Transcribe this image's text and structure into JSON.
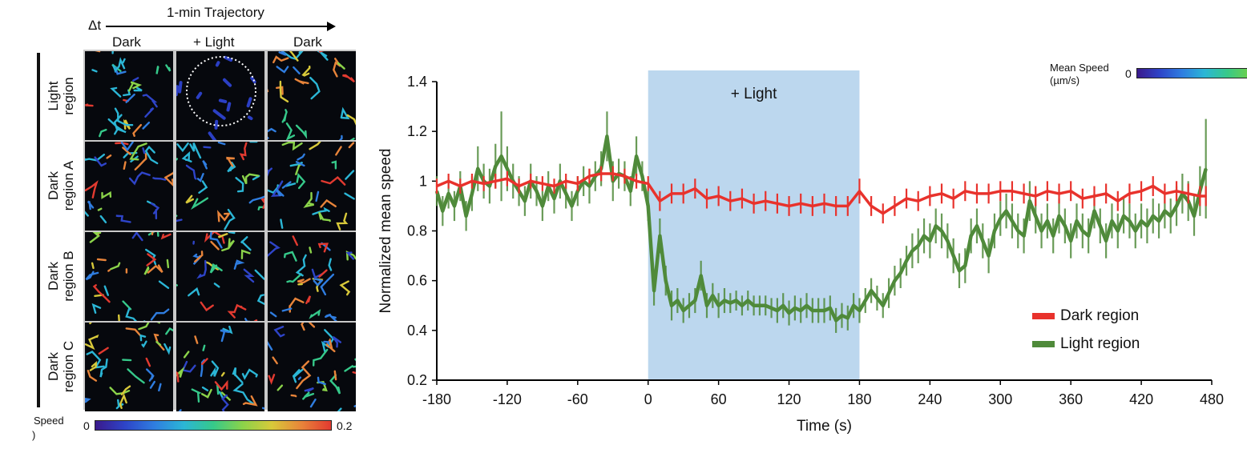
{
  "panel_a": {
    "delta_t": "Δt",
    "header": "1-min Trajectory",
    "columns": [
      "Dark",
      "+ Light",
      "Dark"
    ],
    "rows": [
      [
        "Light",
        "region"
      ],
      [
        "Dark",
        "region A"
      ],
      [
        "Dark",
        "region B"
      ],
      [
        "Dark",
        "region C"
      ]
    ],
    "colorbar": {
      "label": "Speed",
      "label2": ")",
      "min": "0",
      "max": "0.2"
    }
  },
  "legend_top": {
    "label_line1": "Mean Speed",
    "label_line2": "(µm/s)",
    "min": "0"
  },
  "colors": {
    "dark": "#e8322c",
    "light": "#4f8a3a",
    "shade": "#bcd7ee"
  },
  "chart_data": {
    "type": "line",
    "title": "",
    "xlabel": "Time (s)",
    "ylabel": "Normalized mean speed",
    "xlim": [
      -180,
      480
    ],
    "ylim": [
      0.2,
      1.4
    ],
    "xticks": [
      "-180",
      "-120",
      "-60",
      "0",
      "60",
      "120",
      "180",
      "240",
      "300",
      "360",
      "420",
      "480"
    ],
    "yticks": [
      "0.2",
      "0.4",
      "0.6",
      "0.8",
      "1",
      "1.2",
      "1.4"
    ],
    "annotation": {
      "text": "+ Light",
      "x_start": 0,
      "x_end": 180
    },
    "series": [
      {
        "name": "Dark region",
        "color": "#e8322c",
        "x": [
          -180,
          -170,
          -160,
          -150,
          -140,
          -130,
          -120,
          -110,
          -100,
          -90,
          -80,
          -70,
          -60,
          -50,
          -40,
          -30,
          -20,
          -10,
          0,
          10,
          20,
          30,
          40,
          50,
          60,
          70,
          80,
          90,
          100,
          110,
          120,
          130,
          140,
          150,
          160,
          170,
          180,
          190,
          200,
          210,
          220,
          230,
          240,
          250,
          260,
          270,
          280,
          290,
          300,
          310,
          320,
          330,
          340,
          350,
          360,
          370,
          380,
          390,
          400,
          410,
          420,
          430,
          440,
          450,
          460,
          470,
          475
        ],
        "y": [
          0.98,
          1.0,
          0.98,
          1.0,
          0.99,
          1.0,
          1.01,
          0.98,
          1.0,
          0.99,
          0.98,
          1.0,
          0.99,
          1.02,
          1.03,
          1.03,
          1.02,
          1.0,
          0.99,
          0.92,
          0.95,
          0.95,
          0.97,
          0.93,
          0.94,
          0.92,
          0.93,
          0.91,
          0.92,
          0.91,
          0.9,
          0.91,
          0.9,
          0.91,
          0.9,
          0.9,
          0.96,
          0.9,
          0.87,
          0.9,
          0.93,
          0.92,
          0.94,
          0.95,
          0.93,
          0.96,
          0.95,
          0.95,
          0.96,
          0.96,
          0.95,
          0.94,
          0.96,
          0.95,
          0.96,
          0.93,
          0.94,
          0.95,
          0.92,
          0.95,
          0.96,
          0.98,
          0.95,
          0.96,
          0.95,
          0.94,
          0.94
        ],
        "err": [
          0.03,
          0.03,
          0.03,
          0.03,
          0.03,
          0.03,
          0.03,
          0.03,
          0.03,
          0.03,
          0.03,
          0.03,
          0.03,
          0.03,
          0.03,
          0.03,
          0.03,
          0.03,
          0.03,
          0.04,
          0.04,
          0.04,
          0.04,
          0.04,
          0.04,
          0.04,
          0.04,
          0.04,
          0.04,
          0.04,
          0.04,
          0.04,
          0.04,
          0.04,
          0.04,
          0.04,
          0.05,
          0.04,
          0.04,
          0.04,
          0.04,
          0.04,
          0.04,
          0.04,
          0.04,
          0.04,
          0.04,
          0.04,
          0.04,
          0.04,
          0.04,
          0.04,
          0.04,
          0.04,
          0.04,
          0.04,
          0.04,
          0.04,
          0.04,
          0.04,
          0.04,
          0.04,
          0.04,
          0.04,
          0.04,
          0.04,
          0.04
        ]
      },
      {
        "name": "Light region",
        "color": "#4f8a3a",
        "x": [
          -180,
          -175,
          -170,
          -165,
          -160,
          -155,
          -150,
          -145,
          -140,
          -135,
          -130,
          -125,
          -120,
          -115,
          -110,
          -105,
          -100,
          -95,
          -90,
          -85,
          -80,
          -75,
          -70,
          -65,
          -60,
          -55,
          -50,
          -45,
          -40,
          -35,
          -30,
          -25,
          -20,
          -15,
          -10,
          -5,
          0,
          5,
          10,
          15,
          20,
          25,
          30,
          35,
          40,
          45,
          50,
          55,
          60,
          65,
          70,
          75,
          80,
          85,
          90,
          95,
          100,
          105,
          110,
          115,
          120,
          125,
          130,
          135,
          140,
          145,
          150,
          155,
          160,
          165,
          170,
          175,
          180,
          185,
          190,
          195,
          200,
          205,
          210,
          215,
          220,
          225,
          230,
          235,
          240,
          245,
          250,
          255,
          260,
          265,
          270,
          275,
          280,
          285,
          290,
          295,
          300,
          305,
          310,
          315,
          320,
          325,
          330,
          335,
          340,
          345,
          350,
          355,
          360,
          365,
          370,
          375,
          380,
          385,
          390,
          395,
          400,
          405,
          410,
          415,
          420,
          425,
          430,
          435,
          440,
          445,
          450,
          455,
          460,
          465,
          470,
          475
        ],
        "y": [
          0.96,
          0.88,
          0.95,
          0.9,
          0.98,
          0.86,
          0.95,
          1.05,
          1.0,
          0.98,
          1.06,
          1.1,
          1.05,
          1.0,
          0.96,
          0.92,
          1.0,
          0.96,
          0.9,
          0.98,
          0.93,
          1.0,
          0.95,
          0.9,
          0.96,
          1.0,
          0.98,
          1.02,
          1.05,
          1.18,
          1.0,
          1.03,
          1.02,
          0.96,
          1.1,
          1.02,
          0.9,
          0.56,
          0.78,
          0.6,
          0.5,
          0.52,
          0.48,
          0.5,
          0.52,
          0.62,
          0.5,
          0.54,
          0.5,
          0.52,
          0.51,
          0.52,
          0.5,
          0.52,
          0.5,
          0.5,
          0.5,
          0.49,
          0.48,
          0.5,
          0.47,
          0.49,
          0.48,
          0.5,
          0.48,
          0.48,
          0.48,
          0.49,
          0.44,
          0.46,
          0.45,
          0.5,
          0.48,
          0.52,
          0.56,
          0.53,
          0.5,
          0.55,
          0.6,
          0.63,
          0.68,
          0.72,
          0.74,
          0.78,
          0.76,
          0.82,
          0.8,
          0.76,
          0.7,
          0.64,
          0.66,
          0.78,
          0.82,
          0.76,
          0.7,
          0.8,
          0.85,
          0.88,
          0.84,
          0.8,
          0.78,
          0.92,
          0.86,
          0.8,
          0.84,
          0.78,
          0.86,
          0.82,
          0.76,
          0.84,
          0.8,
          0.78,
          0.88,
          0.82,
          0.76,
          0.84,
          0.8,
          0.86,
          0.84,
          0.8,
          0.84,
          0.82,
          0.86,
          0.84,
          0.88,
          0.86,
          0.9,
          0.95,
          0.92,
          0.86,
          0.96,
          1.05
        ],
        "err": [
          0.06,
          0.06,
          0.06,
          0.06,
          0.06,
          0.06,
          0.07,
          0.09,
          0.07,
          0.07,
          0.09,
          0.18,
          0.09,
          0.07,
          0.06,
          0.06,
          0.07,
          0.06,
          0.06,
          0.06,
          0.06,
          0.07,
          0.06,
          0.06,
          0.06,
          0.06,
          0.07,
          0.06,
          0.07,
          0.1,
          0.08,
          0.06,
          0.06,
          0.06,
          0.08,
          0.06,
          0.06,
          0.06,
          0.07,
          0.06,
          0.06,
          0.05,
          0.05,
          0.05,
          0.05,
          0.06,
          0.05,
          0.05,
          0.05,
          0.05,
          0.04,
          0.04,
          0.04,
          0.04,
          0.04,
          0.04,
          0.04,
          0.04,
          0.05,
          0.05,
          0.05,
          0.05,
          0.05,
          0.05,
          0.05,
          0.05,
          0.05,
          0.05,
          0.05,
          0.05,
          0.05,
          0.05,
          0.05,
          0.05,
          0.05,
          0.05,
          0.05,
          0.06,
          0.06,
          0.06,
          0.06,
          0.07,
          0.07,
          0.07,
          0.07,
          0.07,
          0.07,
          0.07,
          0.07,
          0.07,
          0.07,
          0.07,
          0.07,
          0.07,
          0.07,
          0.07,
          0.07,
          0.07,
          0.07,
          0.07,
          0.07,
          0.08,
          0.07,
          0.07,
          0.07,
          0.07,
          0.07,
          0.07,
          0.07,
          0.07,
          0.07,
          0.07,
          0.07,
          0.07,
          0.07,
          0.07,
          0.07,
          0.07,
          0.07,
          0.07,
          0.07,
          0.07,
          0.07,
          0.07,
          0.07,
          0.07,
          0.08,
          0.08,
          0.08,
          0.08,
          0.1,
          0.2
        ]
      }
    ],
    "legend": {
      "entries": [
        "Dark region",
        "Light region"
      ],
      "position": "bottom-right"
    },
    "grid": false
  }
}
